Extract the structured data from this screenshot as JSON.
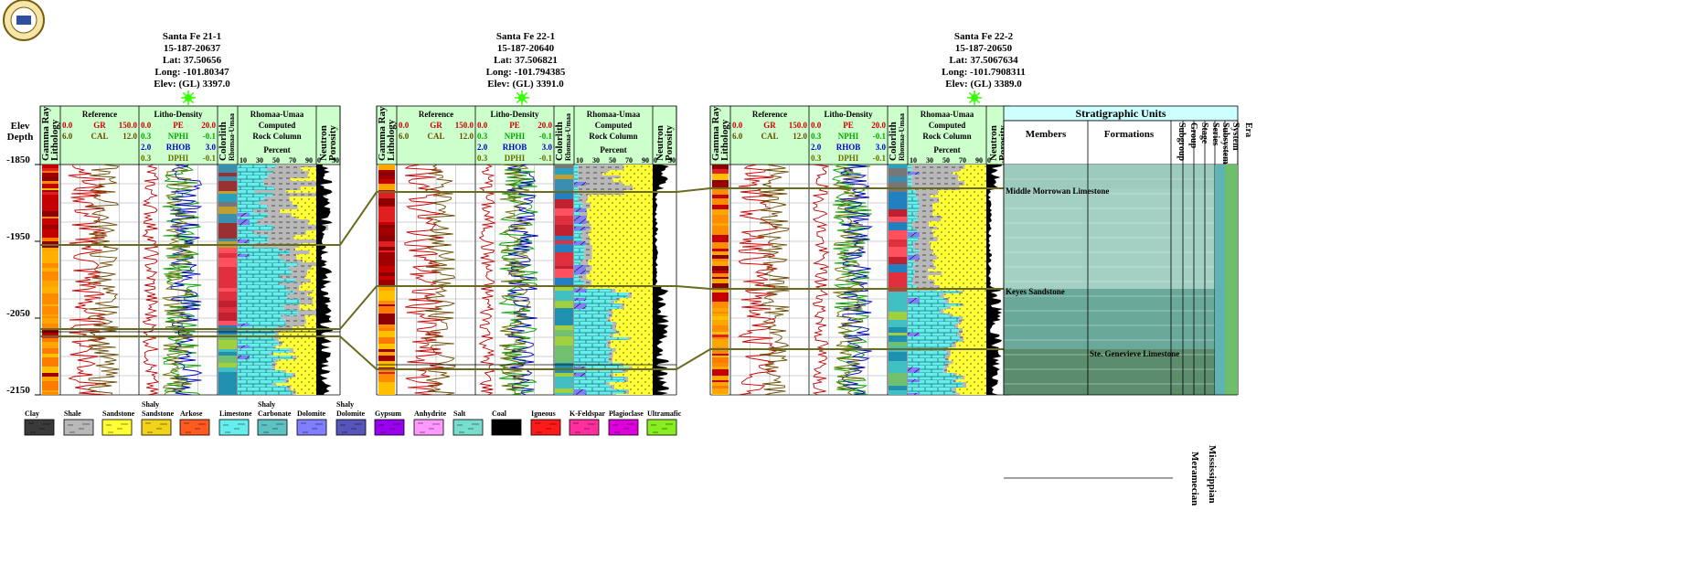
{
  "logo": {
    "label": "Kansas Geological Survey"
  },
  "depth_header": {
    "depth": "Depth",
    "elev": "Elev"
  },
  "depth_ticks": [
    "-1850",
    "-1950",
    "-2050",
    "-2150"
  ],
  "wells": [
    {
      "name": "Santa Fe 21-1",
      "api": "15-187-20637",
      "lat": "Lat: 37.50656",
      "long": "Long: -101.80347",
      "elev": "Elev: (GL) 3397.0"
    },
    {
      "name": "Santa Fe 22-1",
      "api": "15-187-20640",
      "lat": "Lat: 37.506821",
      "long": "Long: -101.794385",
      "elev": "Elev: (GL) 3391.0"
    },
    {
      "name": "Santa Fe 22-2",
      "api": "15-187-20650",
      "lat": "Lat: 37.5067634",
      "long": "Long: -101.7908311",
      "elev": "Elev: (GL) 3389.0"
    }
  ],
  "track_headers": {
    "gamma_ray": "Gamma Ray",
    "lithology": "Lithology",
    "reference": "Reference",
    "gr": "GR",
    "cal": "CAL",
    "gr_min": "0.0",
    "gr_max": "150.0",
    "cal_min": "6.0",
    "cal_max": "12.0",
    "litho_density": "Litho-Density",
    "pe": "PE",
    "nphi": "NPHI",
    "rhob": "RHOB",
    "dphi": "DPHI",
    "pe_min": "0.0",
    "pe_max": "20.0",
    "nphi_min": "0.3",
    "nphi_max": "-0.1",
    "rhob_min": "2.0",
    "rhob_max": "3.0",
    "dphi_min": "0.3",
    "dphi_max": "-0.1",
    "colorlith": "Colorlith",
    "rhomaa_umaa_small": "Rhomaa-Umaa",
    "rhomaa_umaa": "Rhomaa-Umaa",
    "computed": "Computed",
    "rock_column": "Rock Column",
    "percent": "Percent",
    "percent_scale": [
      "10",
      "30",
      "50",
      "70",
      "90"
    ],
    "neutron": "Neutron",
    "porosity": "Porosity",
    "neutron_scale": [
      "0",
      "50"
    ]
  },
  "strat": {
    "title": "Stratigraphic Units",
    "members": "Members",
    "formations": "Formations",
    "subgroup": "Subgroup",
    "group": "Group",
    "stage": "Stage",
    "series": "Series",
    "subsystem": "Subsystem",
    "system": "System",
    "era": "Era",
    "units": [
      "Middle Morrowan Limestone",
      "Keyes Sandstone",
      "Ste. Genevieve Limestone"
    ],
    "series_name": "Meramecian",
    "system_name": "Mississippian"
  },
  "legend": [
    {
      "label": "Clay",
      "color": "#3a3a3a"
    },
    {
      "label": "Shale",
      "color": "#b8b8b8"
    },
    {
      "label": "Sandstone",
      "color": "#ffff33"
    },
    {
      "label": "Shaly Sandstone",
      "color": "#f3d21a"
    },
    {
      "label": "Arkose",
      "color": "#ff5a1f"
    },
    {
      "label": "Limestone",
      "color": "#66eeee"
    },
    {
      "label": "Shaly Carbonate",
      "color": "#5fc2c2"
    },
    {
      "label": "Dolomite",
      "color": "#7f7fff"
    },
    {
      "label": "Shaly Dolomite",
      "color": "#5555bb"
    },
    {
      "label": "Gypsum",
      "color": "#9900ee"
    },
    {
      "label": "Anhydrite",
      "color": "#ff99ff"
    },
    {
      "label": "Salt",
      "color": "#77ddcc"
    },
    {
      "label": "Coal",
      "color": "#000000"
    },
    {
      "label": "Igneous",
      "color": "#ff1a1a"
    },
    {
      "label": "K-Feldspar",
      "color": "#ff2f9e"
    },
    {
      "label": "Plagioclase",
      "color": "#dd00dd"
    },
    {
      "label": "Ultramafic",
      "color": "#88ee22"
    }
  ],
  "colors": {
    "header_fill": "#ccffcc",
    "strat_title_fill": "#ccffff",
    "correlation_line": "#6b6b1f",
    "star": "#33ff00"
  }
}
